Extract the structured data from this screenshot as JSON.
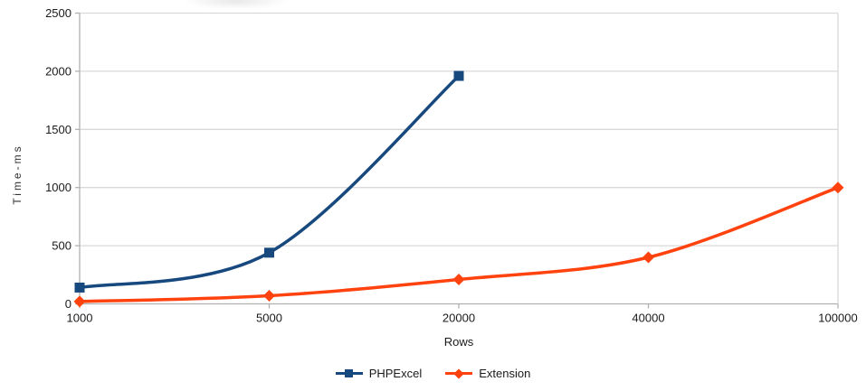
{
  "chart_data": {
    "type": "line",
    "curve": "smooth",
    "xlabel": "Rows",
    "ylabel": "Time-ms",
    "categories": [
      "1000",
      "5000",
      "20000",
      "40000",
      "100000"
    ],
    "series": [
      {
        "name": "PHPExcel",
        "color": "#17497e",
        "marker": "square",
        "values": [
          140,
          440,
          1960,
          null,
          null
        ]
      },
      {
        "name": "Extension",
        "color": "#ff420e",
        "marker": "diamond",
        "values": [
          20,
          70,
          210,
          400,
          1000
        ]
      }
    ],
    "ylim": [
      0,
      2500
    ],
    "y_ticks": [
      0,
      500,
      1000,
      1500,
      2000,
      2500
    ],
    "grid": "horizontal-only",
    "legend_position": "bottom"
  },
  "colors": {
    "grid": "#d9d9d9",
    "axis": "#b0b0b0",
    "tick_label": "#1a1a1a"
  }
}
